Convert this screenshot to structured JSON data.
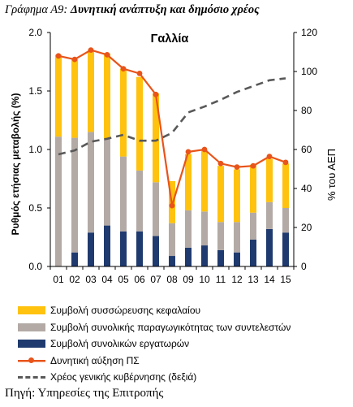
{
  "figure": {
    "title_prefix": "Γράφημα Α9:",
    "title_main": "Δυνητική ανάπτυξη και δημόσιο χρέος",
    "source": "Πηγή: Υπηρεσίες της Επιτροπής"
  },
  "chart_data": {
    "type": "bar",
    "title": "Γαλλία",
    "categories": [
      "01",
      "02",
      "03",
      "04",
      "05",
      "06",
      "07",
      "08",
      "09",
      "10",
      "11",
      "12",
      "13",
      "14",
      "15"
    ],
    "ylabel": "Ρυθμός ετήσιας μεταβολής (%)",
    "y2label": "% του ΑΕΠ",
    "ylim": [
      0,
      2.0
    ],
    "y2lim": [
      0,
      120
    ],
    "yticks": [
      "0.0",
      "0.5",
      "1.0",
      "1.5",
      "2.0"
    ],
    "y2ticks": [
      "0",
      "20",
      "40",
      "60",
      "80",
      "100",
      "120"
    ],
    "stacked": true,
    "series": [
      {
        "name": "Συμβολή συνολικών εργατωρών",
        "type": "bar",
        "color": "#1f3a6e",
        "values": [
          0.0,
          0.12,
          0.29,
          0.35,
          0.3,
          0.3,
          0.26,
          0.09,
          0.16,
          0.18,
          0.14,
          0.12,
          0.23,
          0.32,
          0.29
        ]
      },
      {
        "name": "Συμβολή συνολικής παραγωγικότητας των συντελεστών",
        "type": "bar",
        "color": "#b3aaa6",
        "values": [
          1.11,
          0.98,
          0.86,
          0.74,
          0.64,
          0.52,
          0.46,
          0.28,
          0.32,
          0.29,
          0.24,
          0.26,
          0.23,
          0.23,
          0.21
        ]
      },
      {
        "name": "Συμβολή συσσώρευσης κεφαλαίου",
        "type": "bar",
        "color": "#ffc20e",
        "values": [
          0.7,
          0.67,
          0.7,
          0.73,
          0.75,
          0.8,
          0.76,
          0.36,
          0.48,
          0.52,
          0.48,
          0.45,
          0.41,
          0.37,
          0.38
        ]
      },
      {
        "name": "Δυνητική αύξηση ΠΣ",
        "type": "line",
        "axis": "left",
        "color": "#e8541a",
        "marker": "circle",
        "values": [
          1.8,
          1.77,
          1.85,
          1.81,
          1.69,
          1.65,
          1.47,
          0.52,
          0.98,
          1.0,
          0.88,
          0.85,
          0.86,
          0.94,
          0.89
        ]
      },
      {
        "name": "Χρέος γενικής κυβέρνησης (δεξιά)",
        "type": "line",
        "axis": "right",
        "color": "#595959",
        "dash": true,
        "values": [
          57.5,
          59.5,
          64.0,
          65.5,
          67.5,
          64.5,
          64.5,
          68.5,
          79.0,
          82.0,
          85.5,
          89.5,
          92.5,
          95.5,
          96.5
        ]
      }
    ],
    "legend_order": [
      2,
      1,
      0,
      3,
      4
    ],
    "legend_position": "bottom",
    "grid": false
  }
}
